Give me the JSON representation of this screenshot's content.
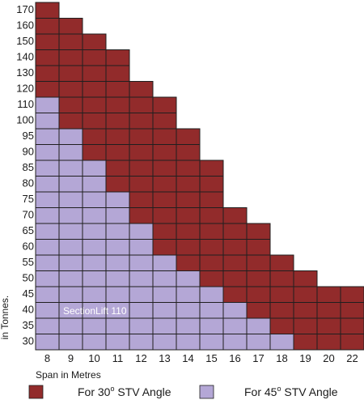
{
  "chart_data": {
    "type": "heatmap",
    "xlabel": "Span in Metres",
    "ylabel": "in Tonnes.",
    "x": [
      8,
      9,
      10,
      11,
      12,
      13,
      14,
      15,
      16,
      17,
      18,
      19,
      20,
      22
    ],
    "y": [
      30,
      35,
      40,
      45,
      50,
      55,
      60,
      65,
      70,
      75,
      80,
      85,
      90,
      95,
      100,
      110,
      120,
      130,
      140,
      150,
      160,
      170
    ],
    "max_capacity_30": [
      170,
      160,
      150,
      140,
      120,
      110,
      95,
      85,
      70,
      65,
      55,
      50,
      45,
      45
    ],
    "max_capacity_45": [
      110,
      95,
      85,
      75,
      65,
      55,
      50,
      45,
      40,
      35,
      30,
      null,
      null,
      null
    ],
    "annotation": "SectionLift 110",
    "legend": [
      {
        "label": "For 30",
        "unit": "o",
        "suffix": " STV Angle",
        "color": "#922b2b"
      },
      {
        "label": "For 45",
        "unit": "o",
        "suffix": " STV Angle",
        "color": "#b4a7d6"
      }
    ],
    "grid": true
  }
}
